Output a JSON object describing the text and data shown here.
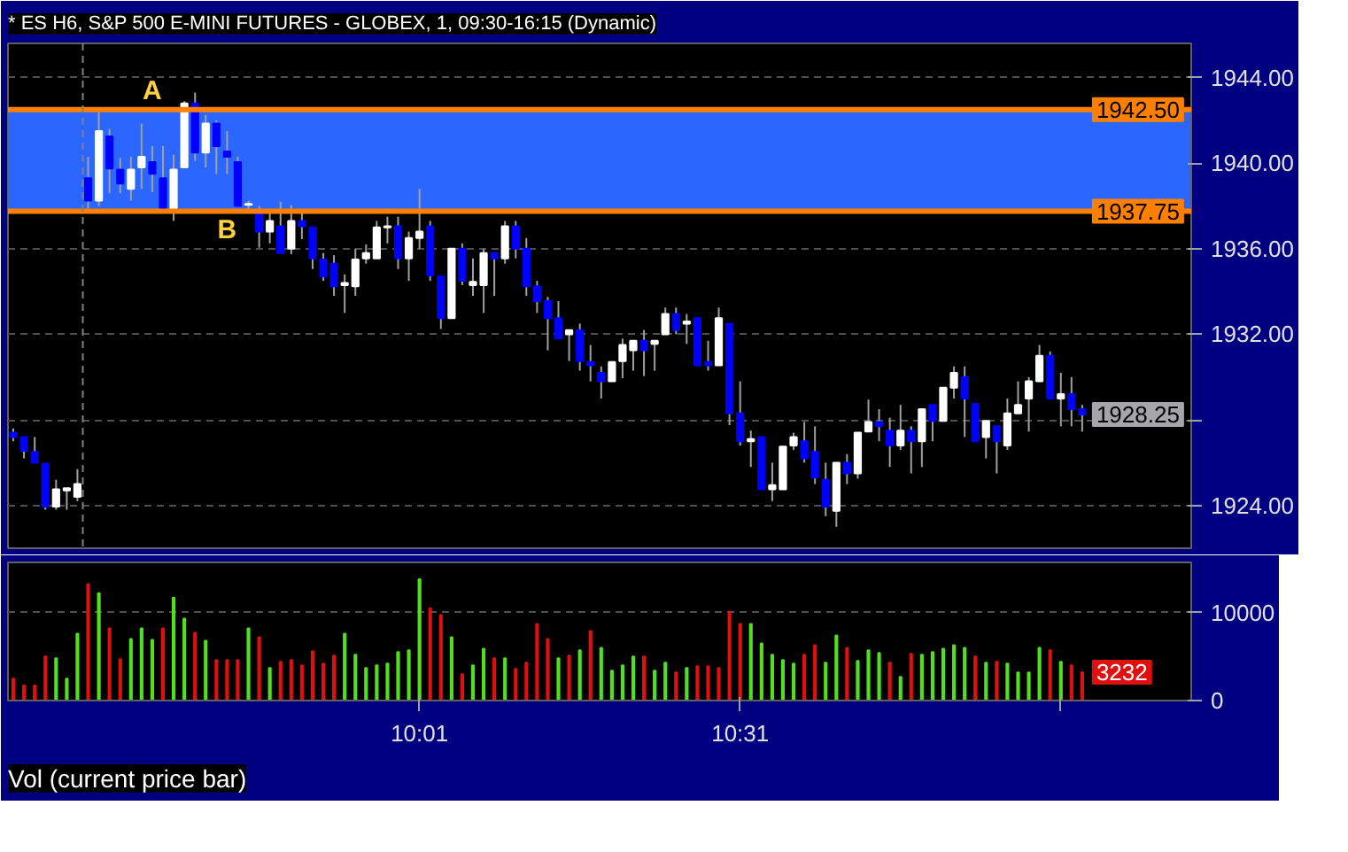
{
  "chart_data": [
    {
      "type": "candlestick",
      "title": "* ES H6, S&P 500 E-MINI FUTURES - GLOBEX, 1, 09:30-16:15 (Dynamic)",
      "x": [
        9.3833,
        9.4,
        9.4167,
        9.4333,
        9.45,
        9.4667,
        9.4833,
        9.5,
        9.5167,
        9.5333,
        9.55,
        9.5667,
        9.5833,
        9.6,
        9.6167,
        9.6333,
        9.65,
        9.6667,
        9.6833,
        9.7,
        9.7167,
        9.7333,
        9.75,
        9.7667,
        9.7833,
        9.8,
        9.8167,
        9.8333,
        9.85,
        9.8667,
        9.8833,
        9.9,
        9.9167,
        9.9333,
        9.95,
        9.9667,
        9.9833,
        10.0,
        10.0167,
        10.0333,
        10.05,
        10.0667,
        10.0833,
        10.1,
        10.1167,
        10.1333,
        10.15,
        10.1667,
        10.1833,
        10.2,
        10.2167,
        10.2333,
        10.25,
        10.2667,
        10.2833,
        10.3,
        10.3167,
        10.3333,
        10.35,
        10.3667,
        10.3833,
        10.4,
        10.4167,
        10.4333,
        10.45,
        10.4667,
        10.4833,
        10.5,
        10.5167,
        10.5333,
        10.55,
        10.5667,
        10.5833,
        10.6,
        10.6167,
        10.6333,
        10.65,
        10.6667,
        10.6833,
        10.7,
        10.7167,
        10.7333,
        10.75,
        10.7667,
        10.7833,
        10.8,
        10.8167,
        10.8333,
        10.85,
        10.8667,
        10.8833,
        10.9,
        10.9167,
        10.9333,
        10.95,
        10.9667,
        10.9833,
        11.0,
        11.0167,
        11.0333,
        11.05
      ],
      "ohlc": [
        [
          1927.4,
          1927.6,
          1927.0,
          1927.2
        ],
        [
          1927.2,
          1927.2,
          1926.2,
          1926.55
        ],
        [
          1926.5,
          1927.2,
          1926.0,
          1926.0
        ],
        [
          1925.95,
          1925.95,
          1923.8,
          1923.95
        ],
        [
          1923.95,
          1925.2,
          1923.8,
          1924.75
        ],
        [
          1924.7,
          1924.8,
          1923.8,
          1924.8
        ],
        [
          1924.4,
          1925.7,
          1924.2,
          1925.0
        ],
        [
          1939.3,
          1940.3,
          1937.8,
          1938.25
        ],
        [
          1938.25,
          1942.5,
          1938.0,
          1941.5
        ],
        [
          1941.25,
          1941.6,
          1938.6,
          1939.75
        ],
        [
          1939.7,
          1940.25,
          1938.6,
          1939.05
        ],
        [
          1938.8,
          1940.3,
          1938.25,
          1939.7
        ],
        [
          1939.8,
          1941.85,
          1938.8,
          1940.3
        ],
        [
          1940.05,
          1940.8,
          1938.65,
          1939.5
        ],
        [
          1939.3,
          1940.8,
          1937.8,
          1937.8
        ],
        [
          1937.8,
          1940.4,
          1937.3,
          1939.7
        ],
        [
          1939.8,
          1942.9,
          1939.8,
          1942.8
        ],
        [
          1942.8,
          1943.3,
          1940.1,
          1940.5
        ],
        [
          1940.5,
          1942.25,
          1939.8,
          1941.85
        ],
        [
          1941.85,
          1942.0,
          1939.5,
          1940.8
        ],
        [
          1940.55,
          1941.5,
          1939.5,
          1940.3
        ],
        [
          1940.05,
          1940.3,
          1938.0,
          1938.0
        ],
        [
          1938.05,
          1938.25,
          1937.8,
          1938.1
        ],
        [
          1937.7,
          1938.0,
          1936.05,
          1936.8
        ],
        [
          1936.8,
          1937.7,
          1936.25,
          1937.3
        ],
        [
          1937.05,
          1938.2,
          1935.8,
          1935.8
        ],
        [
          1936.0,
          1938.05,
          1935.75,
          1937.3
        ],
        [
          1937.3,
          1937.7,
          1936.45,
          1937.05
        ],
        [
          1937.0,
          1937.0,
          1935.05,
          1935.55
        ],
        [
          1935.5,
          1935.8,
          1934.5,
          1934.7
        ],
        [
          1935.3,
          1935.7,
          1933.8,
          1934.25
        ],
        [
          1934.3,
          1934.8,
          1933.0,
          1934.4
        ],
        [
          1934.25,
          1936.0,
          1933.8,
          1935.5
        ],
        [
          1935.55,
          1936.2,
          1935.3,
          1935.8
        ],
        [
          1935.55,
          1937.3,
          1935.55,
          1937.0
        ],
        [
          1937.0,
          1937.5,
          1936.25,
          1937.05
        ],
        [
          1937.05,
          1937.5,
          1935.05,
          1935.55
        ],
        [
          1935.55,
          1936.8,
          1934.5,
          1936.5
        ],
        [
          1936.5,
          1938.8,
          1936.0,
          1936.8
        ],
        [
          1937.05,
          1937.3,
          1934.5,
          1934.75
        ],
        [
          1934.7,
          1934.7,
          1932.25,
          1932.75
        ],
        [
          1932.75,
          1936.0,
          1932.75,
          1936.0
        ],
        [
          1936.0,
          1936.25,
          1934.3,
          1934.5
        ],
        [
          1934.3,
          1935.55,
          1933.8,
          1934.45
        ],
        [
          1934.3,
          1936.0,
          1933.0,
          1935.8
        ],
        [
          1935.8,
          1935.8,
          1933.8,
          1935.55
        ],
        [
          1935.55,
          1937.3,
          1935.3,
          1937.05
        ],
        [
          1937.05,
          1937.3,
          1935.55,
          1936.0
        ],
        [
          1936.0,
          1936.5,
          1933.8,
          1934.25
        ],
        [
          1934.25,
          1934.5,
          1933.0,
          1933.55
        ],
        [
          1933.55,
          1933.75,
          1931.25,
          1932.75
        ],
        [
          1932.75,
          1933.55,
          1931.8,
          1931.8
        ],
        [
          1932.0,
          1932.2,
          1930.75,
          1932.2
        ],
        [
          1932.2,
          1932.5,
          1930.3,
          1930.75
        ],
        [
          1930.7,
          1931.5,
          1929.8,
          1930.55
        ],
        [
          1930.2,
          1930.5,
          1929.0,
          1929.8
        ],
        [
          1929.8,
          1930.7,
          1929.8,
          1930.7
        ],
        [
          1930.75,
          1931.8,
          1929.95,
          1931.5
        ],
        [
          1931.25,
          1931.7,
          1930.3,
          1931.7
        ],
        [
          1931.7,
          1932.2,
          1930.05,
          1931.25
        ],
        [
          1931.55,
          1931.7,
          1930.3,
          1931.7
        ],
        [
          1932.0,
          1933.25,
          1932.0,
          1932.95
        ],
        [
          1932.95,
          1933.25,
          1932.0,
          1932.2
        ],
        [
          1932.5,
          1932.95,
          1931.55,
          1932.6
        ],
        [
          1932.75,
          1932.75,
          1930.55,
          1930.55
        ],
        [
          1930.7,
          1931.7,
          1930.3,
          1930.55
        ],
        [
          1930.55,
          1933.25,
          1930.55,
          1932.75
        ],
        [
          1932.5,
          1932.5,
          1927.75,
          1928.3
        ],
        [
          1928.3,
          1929.8,
          1926.8,
          1927.0
        ],
        [
          1927.0,
          1927.5,
          1925.8,
          1927.1
        ],
        [
          1927.2,
          1927.2,
          1924.75,
          1924.75
        ],
        [
          1924.75,
          1926.0,
          1924.2,
          1924.95
        ],
        [
          1924.75,
          1926.75,
          1924.75,
          1926.75
        ],
        [
          1926.8,
          1927.4,
          1926.6,
          1927.2
        ],
        [
          1927.0,
          1927.9,
          1926.0,
          1926.2
        ],
        [
          1926.5,
          1927.7,
          1925.0,
          1925.3
        ],
        [
          1925.2,
          1926.0,
          1923.5,
          1923.95
        ],
        [
          1923.75,
          1926.0,
          1923.0,
          1926.0
        ],
        [
          1926.0,
          1926.4,
          1925.0,
          1925.5
        ],
        [
          1925.5,
          1927.4,
          1925.25,
          1927.4
        ],
        [
          1927.45,
          1928.95,
          1927.45,
          1927.9
        ],
        [
          1927.9,
          1928.5,
          1927.0,
          1927.7
        ],
        [
          1927.5,
          1928.1,
          1925.8,
          1926.8
        ],
        [
          1926.8,
          1928.7,
          1926.6,
          1927.5
        ],
        [
          1927.5,
          1927.7,
          1925.5,
          1927.0
        ],
        [
          1927.0,
          1928.5,
          1925.8,
          1928.5
        ],
        [
          1928.7,
          1928.7,
          1927.0,
          1927.95
        ],
        [
          1927.95,
          1929.5,
          1927.95,
          1929.5
        ],
        [
          1929.5,
          1930.5,
          1929.0,
          1930.2
        ],
        [
          1930.0,
          1930.5,
          1927.2,
          1929.0
        ],
        [
          1928.75,
          1928.75,
          1927.0,
          1927.0
        ],
        [
          1927.2,
          1927.95,
          1926.2,
          1927.95
        ],
        [
          1927.7,
          1927.7,
          1925.5,
          1927.0
        ],
        [
          1926.8,
          1929.0,
          1926.6,
          1928.3
        ],
        [
          1928.3,
          1929.8,
          1928.3,
          1928.7
        ],
        [
          1929.0,
          1930.0,
          1927.45,
          1929.8
        ],
        [
          1929.8,
          1931.5,
          1929.8,
          1931.0
        ],
        [
          1931.0,
          1931.2,
          1929.0,
          1929.0
        ],
        [
          1929.0,
          1930.2,
          1927.7,
          1929.2
        ],
        [
          1929.2,
          1930.0,
          1927.7,
          1928.5
        ],
        [
          1928.5,
          1928.7,
          1927.45,
          1928.25
        ]
      ],
      "colors": [
        "#0000ff",
        "#0000ff",
        "#0000ff",
        "#0000ff",
        "#ffffff",
        "#ffffff",
        "#ffffff",
        "#0000ff",
        "#ffffff",
        "#0000ff",
        "#0000ff",
        "#ffffff",
        "#ffffff",
        "#0000ff",
        "#0000ff",
        "#ffffff",
        "#ffffff",
        "#0000ff",
        "#ffffff",
        "#0000ff",
        "#0000ff",
        "#0000ff",
        "#ffffff",
        "#0000ff",
        "#ffffff",
        "#0000ff",
        "#ffffff",
        "#0000ff",
        "#0000ff",
        "#0000ff",
        "#0000ff",
        "#ffffff",
        "#ffffff",
        "#ffffff",
        "#ffffff",
        "#ffffff",
        "#0000ff",
        "#ffffff",
        "#ffffff",
        "#0000ff",
        "#0000ff",
        "#ffffff",
        "#0000ff",
        "#ffffff",
        "#ffffff",
        "#0000ff",
        "#ffffff",
        "#0000ff",
        "#0000ff",
        "#0000ff",
        "#0000ff",
        "#0000ff",
        "#ffffff",
        "#0000ff",
        "#0000ff",
        "#0000ff",
        "#ffffff",
        "#ffffff",
        "#ffffff",
        "#0000ff",
        "#ffffff",
        "#ffffff",
        "#0000ff",
        "#ffffff",
        "#0000ff",
        "#0000ff",
        "#ffffff",
        "#0000ff",
        "#0000ff",
        "#ffffff",
        "#0000ff",
        "#ffffff",
        "#ffffff",
        "#ffffff",
        "#0000ff",
        "#0000ff",
        "#0000ff",
        "#ffffff",
        "#0000ff",
        "#ffffff",
        "#ffffff",
        "#0000ff",
        "#0000ff",
        "#ffffff",
        "#0000ff",
        "#ffffff",
        "#0000ff",
        "#ffffff",
        "#ffffff",
        "#0000ff",
        "#0000ff",
        "#ffffff",
        "#0000ff",
        "#ffffff",
        "#ffffff",
        "#ffffff",
        "#ffffff",
        "#0000ff",
        "#ffffff",
        "#0000ff",
        "#0000ff"
      ],
      "xlim": [
        9.375,
        11.22
      ],
      "ylim": [
        1922,
        1945.6
      ],
      "yticks": [
        {
          "value": 1924,
          "label": "1924.00"
        },
        {
          "value": 1928,
          "label": null
        },
        {
          "value": 1932,
          "label": "1932.00"
        },
        {
          "value": 1936,
          "label": "1936.00"
        },
        {
          "value": 1940,
          "label": "1940.00"
        },
        {
          "value": 1944,
          "label": "1944.00"
        }
      ],
      "tick_labels": "y",
      "grid": "y",
      "bands": [
        {
          "axis": "y",
          "from": 1937.75,
          "to": 1942.5,
          "color": "#2a66ff"
        }
      ],
      "ref_lines": [
        {
          "axis": "y",
          "value": 1942.5,
          "label": "1942.50",
          "color": "#ff8000",
          "line_style": "solid"
        },
        {
          "axis": "y",
          "value": 1937.75,
          "label": "1937.75",
          "color": "#ff8000",
          "line_style": "solid"
        },
        {
          "axis": "x",
          "value": 9.4917,
          "color": "#808080",
          "line_style": "dashed"
        }
      ],
      "annotations": [
        "A",
        "B",
        {
          "text": "1928.25",
          "x": 11.05,
          "y": 1928.25
        }
      ]
    },
    {
      "type": "bar",
      "title": "Vol (current price bar)",
      "x": [
        9.3833,
        9.4,
        9.4167,
        9.4333,
        9.45,
        9.4667,
        9.4833,
        9.5,
        9.5167,
        9.5333,
        9.55,
        9.5667,
        9.5833,
        9.6,
        9.6167,
        9.6333,
        9.65,
        9.6667,
        9.6833,
        9.7,
        9.7167,
        9.7333,
        9.75,
        9.7667,
        9.7833,
        9.8,
        9.8167,
        9.8333,
        9.85,
        9.8667,
        9.8833,
        9.9,
        9.9167,
        9.9333,
        9.95,
        9.9667,
        9.9833,
        10.0,
        10.0167,
        10.0333,
        10.05,
        10.0667,
        10.0833,
        10.1,
        10.1167,
        10.1333,
        10.15,
        10.1667,
        10.1833,
        10.2,
        10.2167,
        10.2333,
        10.25,
        10.2667,
        10.2833,
        10.3,
        10.3167,
        10.3333,
        10.35,
        10.3667,
        10.3833,
        10.4,
        10.4167,
        10.4333,
        10.45,
        10.4667,
        10.4833,
        10.5,
        10.5167,
        10.5333,
        10.55,
        10.5667,
        10.5833,
        10.6,
        10.6167,
        10.6333,
        10.65,
        10.6667,
        10.6833,
        10.7,
        10.7167,
        10.7333,
        10.75,
        10.7667,
        10.7833,
        10.8,
        10.8167,
        10.8333,
        10.85,
        10.8667,
        10.8833,
        10.9,
        10.9167,
        10.9333,
        10.95,
        10.9667,
        10.9833,
        11.0,
        11.0167,
        11.0333,
        11.05
      ],
      "values": [
        2500,
        1700,
        1700,
        5000,
        4800,
        2500,
        7600,
        13200,
        12200,
        8200,
        4700,
        7000,
        8200,
        6900,
        8200,
        11700,
        9300,
        7700,
        6800,
        4600,
        4600,
        4600,
        8200,
        7200,
        3700,
        4400,
        4600,
        4000,
        5600,
        4200,
        5100,
        7600,
        5200,
        3700,
        4000,
        4200,
        5500,
        5700,
        13800,
        10500,
        9700,
        7200,
        3000,
        4000,
        5900,
        4800,
        4800,
        3600,
        4300,
        8700,
        7000,
        4800,
        5100,
        5700,
        7900,
        6000,
        3400,
        4000,
        5000,
        5000,
        3400,
        4300,
        3200,
        3700,
        3900,
        3900,
        3700,
        10100,
        8700,
        8700,
        6500,
        5200,
        4600,
        4200,
        5200,
        6300,
        4300,
        7400,
        6000,
        4500,
        5700,
        5400,
        4300,
        2700,
        5300,
        5200,
        5500,
        5900,
        6300,
        6000,
        5000,
        4300,
        4400,
        4200,
        3200,
        3200,
        6000,
        5700,
        4400,
        4000,
        3232
      ],
      "colors": [
        "#e01010",
        "#e01010",
        "#e01010",
        "#e01010",
        "#50e020",
        "#50e020",
        "#50e020",
        "#e01010",
        "#50e020",
        "#e01010",
        "#e01010",
        "#50e020",
        "#50e020",
        "#50e020",
        "#e01010",
        "#50e020",
        "#50e020",
        "#e01010",
        "#50e020",
        "#e01010",
        "#e01010",
        "#e01010",
        "#50e020",
        "#e01010",
        "#50e020",
        "#e01010",
        "#e01010",
        "#e01010",
        "#e01010",
        "#e01010",
        "#e01010",
        "#50e020",
        "#50e020",
        "#50e020",
        "#50e020",
        "#50e020",
        "#50e020",
        "#50e020",
        "#50e020",
        "#e01010",
        "#e01010",
        "#50e020",
        "#e01010",
        "#50e020",
        "#50e020",
        "#e01010",
        "#50e020",
        "#e01010",
        "#e01010",
        "#e01010",
        "#e01010",
        "#50e020",
        "#e01010",
        "#50e020",
        "#e01010",
        "#50e020",
        "#50e020",
        "#50e020",
        "#50e020",
        "#e01010",
        "#50e020",
        "#50e020",
        "#e01010",
        "#50e020",
        "#e01010",
        "#e01010",
        "#e01010",
        "#e01010",
        "#e01010",
        "#50e020",
        "#50e020",
        "#50e020",
        "#50e020",
        "#50e020",
        "#e01010",
        "#e01010",
        "#50e020",
        "#50e020",
        "#e01010",
        "#50e020",
        "#50e020",
        "#50e020",
        "#e01010",
        "#50e020",
        "#e01010",
        "#50e020",
        "#50e020",
        "#50e020",
        "#50e020",
        "#50e020",
        "#e01010",
        "#50e020",
        "#e01010",
        "#50e020",
        "#50e020",
        "#50e020",
        "#50e020",
        "#e01010",
        "#50e020",
        "#e01010",
        "#e01010"
      ],
      "xlim": [
        9.375,
        11.22
      ],
      "ylim": [
        0,
        15700
      ],
      "yticks": [
        0,
        10000
      ],
      "xticks": [
        {
          "value": 10.0167,
          "label": "10:01"
        },
        {
          "value": 10.5167,
          "label": "10:31"
        },
        {
          "value": 11.0167,
          "label": null
        }
      ],
      "grid": "y",
      "annotations": [
        {
          "text": "3232",
          "x": 11.05,
          "y": 3232
        }
      ]
    }
  ]
}
